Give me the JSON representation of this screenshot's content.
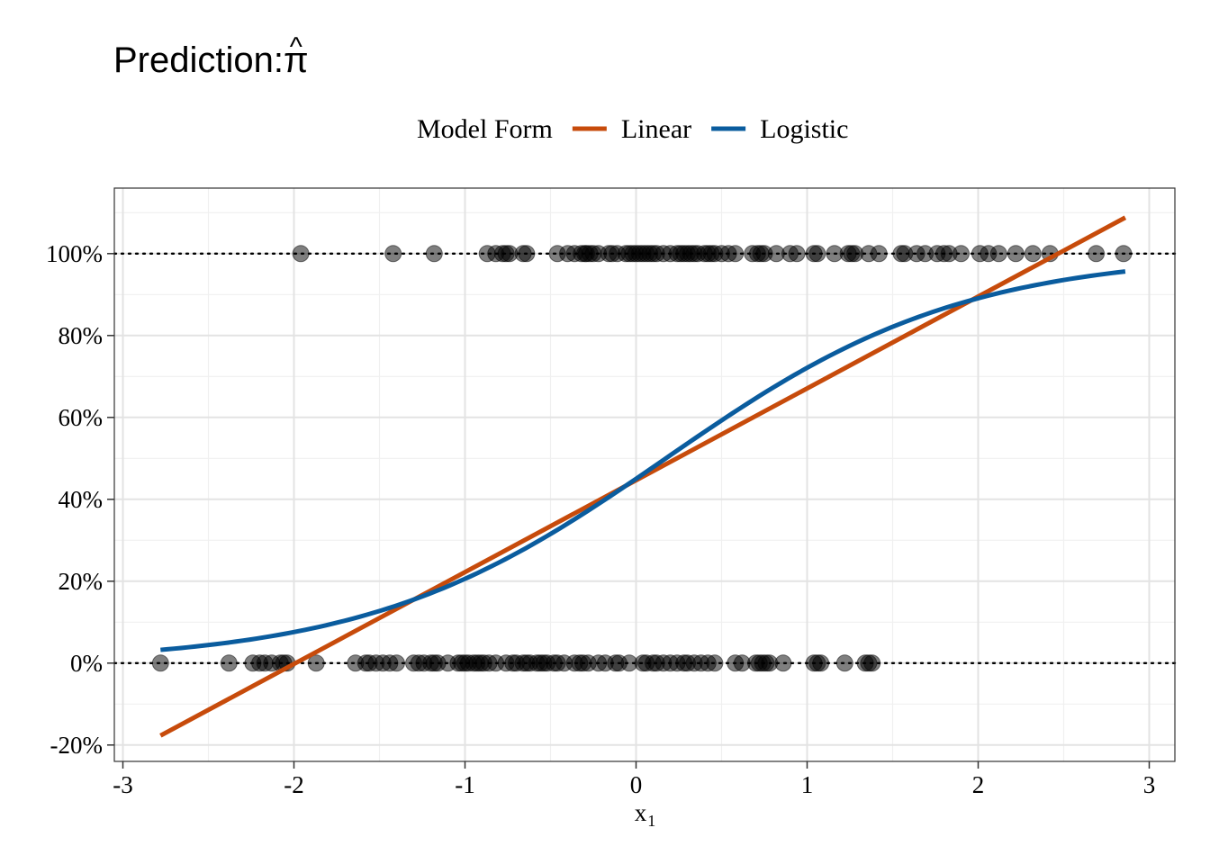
{
  "chart_data": {
    "type": "line",
    "title": "Prediction: ",
    "title_symbol": "π",
    "title_accent": "^",
    "xlabel": "x",
    "xlabel_subscript": "1",
    "ylabel": "",
    "xlim": [
      -3.05,
      3.15
    ],
    "ylim": [
      -0.24,
      1.16
    ],
    "x_ticks": [
      -3,
      -2,
      -1,
      0,
      1,
      2,
      3
    ],
    "x_tick_labels": [
      "-3",
      "-2",
      "-1",
      "0",
      "1",
      "2",
      "3"
    ],
    "y_ticks": [
      -0.2,
      0,
      0.2,
      0.4,
      0.6,
      0.8,
      1.0
    ],
    "y_tick_labels": [
      "-20%",
      "0%",
      "20%",
      "40%",
      "60%",
      "80%",
      "100%"
    ],
    "grid": true,
    "legend": {
      "title": "Model Form",
      "position": "top",
      "entries": [
        {
          "name": "Linear",
          "color": "#C74B0B"
        },
        {
          "name": "Logistic",
          "color": "#0A5C9E"
        }
      ]
    },
    "reference_lines": [
      0,
      1
    ],
    "series": [
      {
        "name": "Linear",
        "color": "#C74B0B",
        "kind": "line",
        "x": [
          -2.78,
          2.86
        ],
        "y": [
          -0.177,
          1.088
        ]
      },
      {
        "name": "Logistic",
        "color": "#0A5C9E",
        "kind": "curve",
        "intercept": -0.2,
        "slope": 1.15,
        "x_range": [
          -2.78,
          2.86
        ]
      }
    ],
    "points": {
      "color": "#000000",
      "opacity": 0.5,
      "y1_x": [
        -1.96,
        -1.42,
        -1.18,
        -0.87,
        -0.82,
        -0.78,
        -0.76,
        -0.74,
        -0.66,
        -0.64,
        -0.46,
        -0.4,
        -0.36,
        -0.32,
        -0.3,
        -0.29,
        -0.27,
        -0.25,
        -0.22,
        -0.16,
        -0.14,
        -0.11,
        -0.06,
        -0.04,
        -0.02,
        0.0,
        0.02,
        0.04,
        0.06,
        0.08,
        0.1,
        0.12,
        0.16,
        0.2,
        0.24,
        0.26,
        0.28,
        0.3,
        0.32,
        0.34,
        0.36,
        0.4,
        0.42,
        0.44,
        0.46,
        0.5,
        0.54,
        0.58,
        0.68,
        0.71,
        0.73,
        0.75,
        0.82,
        0.9,
        0.94,
        1.04,
        1.06,
        1.16,
        1.24,
        1.26,
        1.28,
        1.36,
        1.42,
        1.55,
        1.57,
        1.64,
        1.69,
        1.76,
        1.8,
        1.83,
        1.9,
        2.01,
        2.06,
        2.12,
        2.22,
        2.32,
        2.42,
        2.69,
        2.85
      ],
      "y0_x": [
        -2.78,
        -2.38,
        -2.24,
        -2.2,
        -2.17,
        -2.13,
        -2.08,
        -2.06,
        -2.04,
        -1.87,
        -1.64,
        -1.58,
        -1.56,
        -1.52,
        -1.48,
        -1.44,
        -1.4,
        -1.3,
        -1.27,
        -1.24,
        -1.2,
        -1.18,
        -1.16,
        -1.1,
        -1.04,
        -1.02,
        -1.0,
        -0.98,
        -0.95,
        -0.93,
        -0.91,
        -0.89,
        -0.86,
        -0.82,
        -0.76,
        -0.72,
        -0.7,
        -0.66,
        -0.64,
        -0.62,
        -0.58,
        -0.56,
        -0.54,
        -0.52,
        -0.48,
        -0.46,
        -0.42,
        -0.36,
        -0.33,
        -0.31,
        -0.28,
        -0.22,
        -0.18,
        -0.12,
        -0.1,
        -0.04,
        0.04,
        0.06,
        0.1,
        0.12,
        0.16,
        0.2,
        0.24,
        0.28,
        0.3,
        0.34,
        0.38,
        0.42,
        0.46,
        0.58,
        0.62,
        0.7,
        0.72,
        0.74,
        0.76,
        0.78,
        0.86,
        1.04,
        1.06,
        1.08,
        1.22,
        1.34,
        1.36,
        1.38
      ]
    }
  }
}
